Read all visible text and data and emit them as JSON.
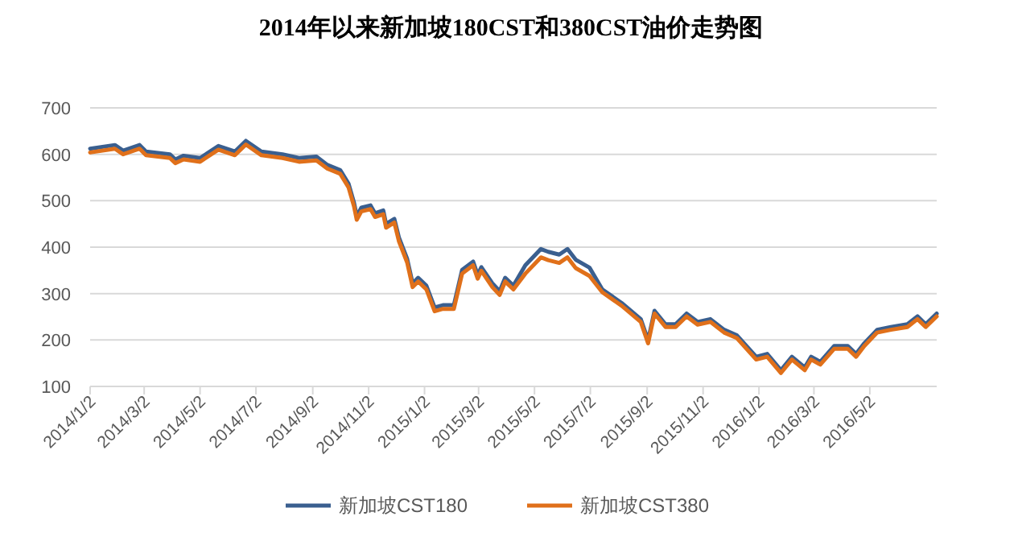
{
  "chart_data": {
    "type": "line",
    "title": "2014年以来新加坡180CST和380CST油价走势图",
    "x": [
      "2014-01-02",
      "2014-01-29",
      "2014-02-07",
      "2014-02-25",
      "2014-03-04",
      "2014-03-30",
      "2014-04-05",
      "2014-04-14",
      "2014-05-02",
      "2014-05-22",
      "2014-06-09",
      "2014-06-21",
      "2014-07-08",
      "2014-07-31",
      "2014-08-18",
      "2014-09-06",
      "2014-09-18",
      "2014-10-02",
      "2014-10-11",
      "2014-10-17",
      "2014-10-20",
      "2014-10-25",
      "2014-11-04",
      "2014-11-09",
      "2014-11-18",
      "2014-11-21",
      "2014-11-30",
      "2014-12-05",
      "2014-12-14",
      "2014-12-20",
      "2014-12-26",
      "2015-01-04",
      "2015-01-13",
      "2015-01-22",
      "2015-02-03",
      "2015-02-12",
      "2015-02-24",
      "2015-03-01",
      "2015-03-05",
      "2015-03-17",
      "2015-03-25",
      "2015-03-31",
      "2015-04-09",
      "2015-04-22",
      "2015-05-09",
      "2015-05-17",
      "2015-05-29",
      "2015-06-07",
      "2015-06-16",
      "2015-07-01",
      "2015-07-15",
      "2015-08-05",
      "2015-08-26",
      "2015-09-03",
      "2015-09-10",
      "2015-09-22",
      "2015-10-03",
      "2015-10-15",
      "2015-10-27",
      "2015-11-10",
      "2015-11-25",
      "2015-12-09",
      "2015-12-30",
      "2016-01-11",
      "2016-01-26",
      "2016-02-07",
      "2016-02-21",
      "2016-02-28",
      "2016-03-09",
      "2016-03-24",
      "2016-04-08",
      "2016-04-17",
      "2016-04-26",
      "2016-05-10",
      "2016-05-25",
      "2016-06-12",
      "2016-06-23",
      "2016-07-02",
      "2016-07-14"
    ],
    "series": [
      {
        "name": "新加坡CST180",
        "color": "#3a5f8f",
        "values": [
          612,
          620,
          608,
          620,
          606,
          600,
          589,
          597,
          592,
          618,
          606,
          629,
          606,
          600,
          592,
          595,
          577,
          566,
          537,
          496,
          467,
          485,
          490,
          473,
          479,
          450,
          461,
          421,
          375,
          322,
          334,
          317,
          270,
          275,
          275,
          351,
          369,
          340,
          357,
          322,
          305,
          334,
          317,
          361,
          396,
          390,
          384,
          396,
          373,
          356,
          309,
          280,
          245,
          199,
          263,
          234,
          234,
          257,
          239,
          245,
          222,
          210,
          164,
          170,
          135,
          164,
          141,
          164,
          153,
          187,
          187,
          170,
          193,
          222,
          228,
          234,
          251,
          234,
          257
        ]
      },
      {
        "name": "新加坡CST380",
        "color": "#e0701a",
        "values": [
          604,
          612,
          600,
          612,
          598,
          592,
          581,
          589,
          584,
          610,
          598,
          621,
          598,
          592,
          584,
          587,
          569,
          558,
          529,
          488,
          459,
          477,
          482,
          465,
          471,
          442,
          453,
          413,
          367,
          314,
          326,
          309,
          262,
          267,
          267,
          343,
          361,
          332,
          349,
          314,
          297,
          326,
          309,
          343,
          378,
          372,
          366,
          378,
          355,
          338,
          303,
          274,
          239,
          193,
          257,
          228,
          228,
          251,
          233,
          239,
          216,
          204,
          158,
          164,
          129,
          158,
          135,
          158,
          147,
          181,
          181,
          164,
          187,
          216,
          222,
          228,
          245,
          228,
          251
        ]
      }
    ],
    "xlim": [
      "2014-01-02",
      "2016-07-14"
    ],
    "xticks": [
      {
        "value": "2014-01-02",
        "label": "2014/1/2"
      },
      {
        "value": "2014-03-02",
        "label": "2014/3/2"
      },
      {
        "value": "2014-05-02",
        "label": "2014/5/2"
      },
      {
        "value": "2014-07-02",
        "label": "2014/7/2"
      },
      {
        "value": "2014-09-02",
        "label": "2014/9/2"
      },
      {
        "value": "2014-11-02",
        "label": "2014/11/2"
      },
      {
        "value": "2015-01-02",
        "label": "2015/1/2"
      },
      {
        "value": "2015-03-02",
        "label": "2015/3/2"
      },
      {
        "value": "2015-05-02",
        "label": "2015/5/2"
      },
      {
        "value": "2015-07-02",
        "label": "2015/7/2"
      },
      {
        "value": "2015-09-02",
        "label": "2015/9/2"
      },
      {
        "value": "2015-11-02",
        "label": "2015/11/2"
      },
      {
        "value": "2016-01-02",
        "label": "2016/1/2"
      },
      {
        "value": "2016-03-02",
        "label": "2016/3/2"
      },
      {
        "value": "2016-05-02",
        "label": "2016/5/2"
      }
    ],
    "ylim": [
      100,
      700
    ],
    "yticks": [
      100,
      200,
      300,
      400,
      500,
      600,
      700
    ],
    "grid": "y",
    "legend": "bottom",
    "marker": "none",
    "line_style": "solid"
  }
}
